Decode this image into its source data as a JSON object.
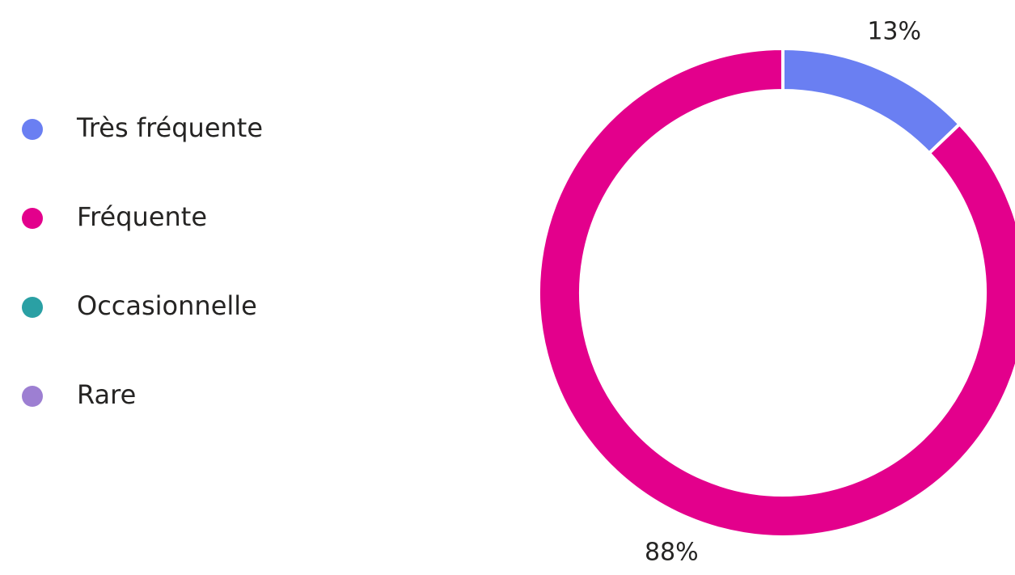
{
  "chart_data": {
    "type": "donut",
    "categories": [
      "Très fréquente",
      "Fréquente",
      "Occasionnelle",
      "Rare"
    ],
    "values": [
      13,
      88,
      0,
      0
    ],
    "value_labels": [
      "13%",
      "88%",
      null,
      null
    ],
    "colors": [
      "#6a7ff2",
      "#e3008c",
      "#2aa0a4",
      "#9d7fd2"
    ],
    "legend": "left"
  }
}
